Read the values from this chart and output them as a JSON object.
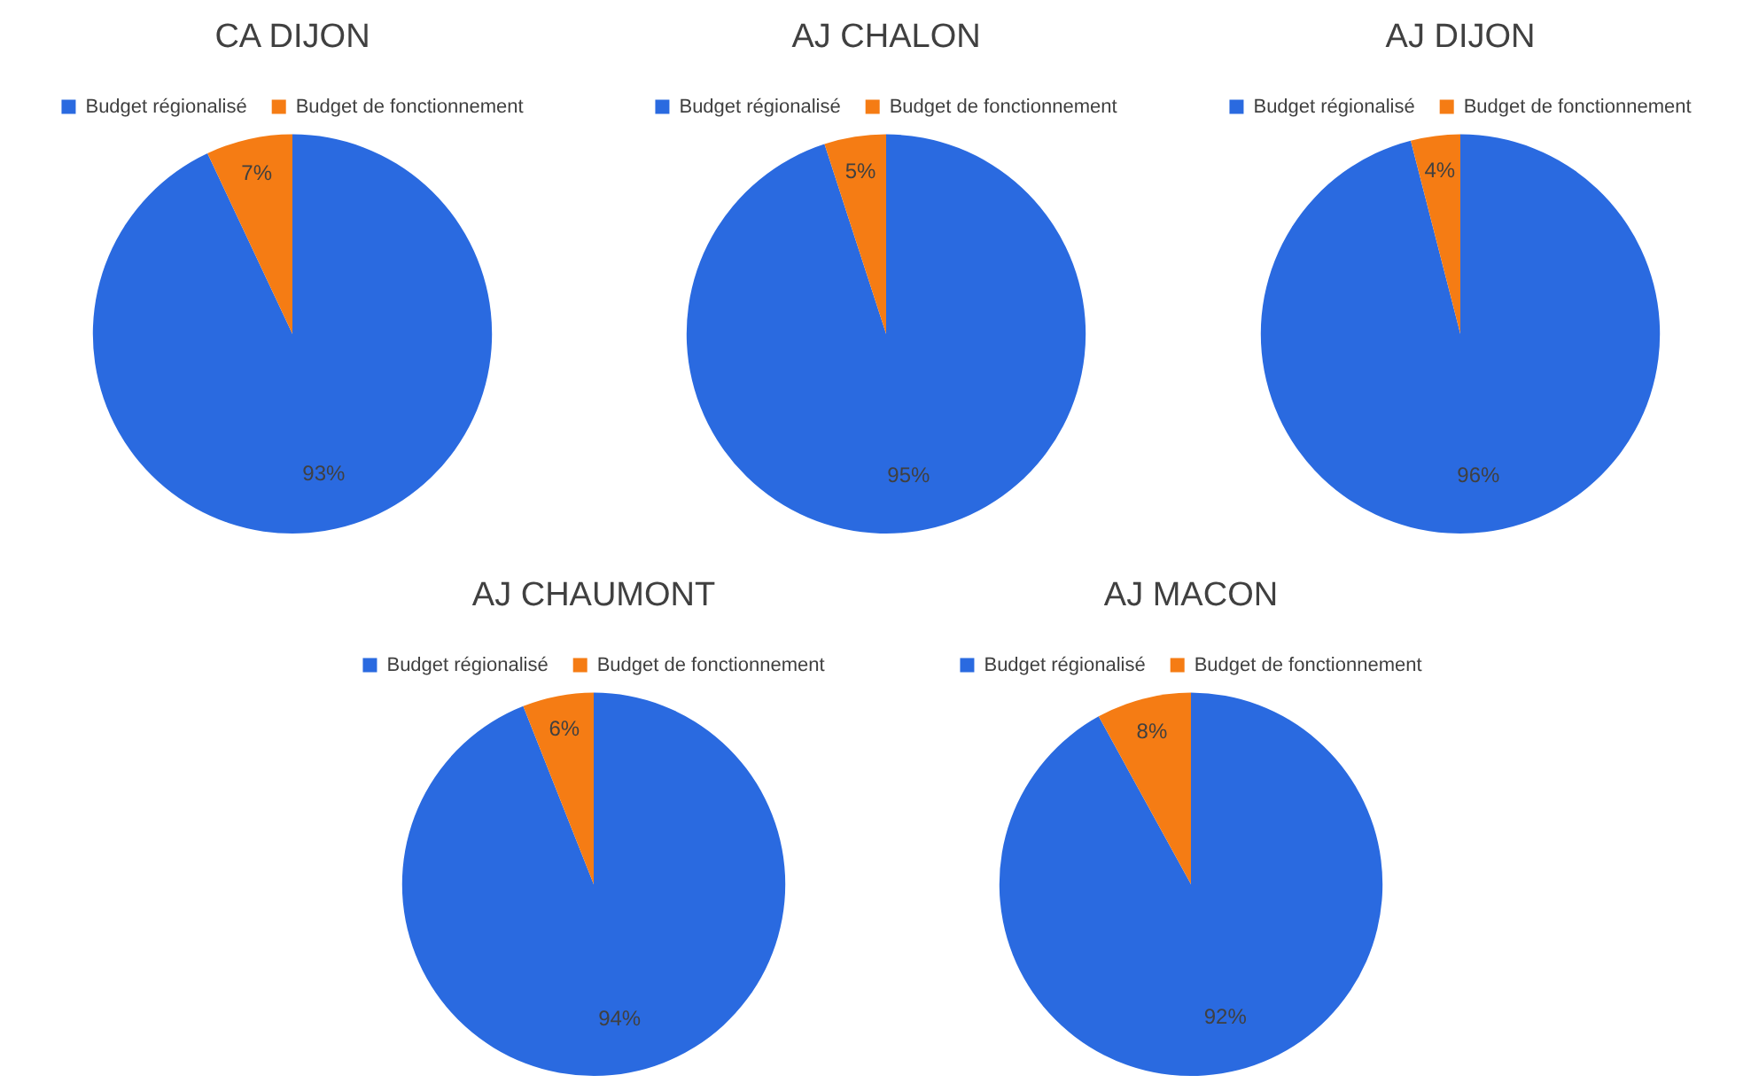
{
  "chart_data": [
    {
      "type": "pie",
      "title": "CA DIJON",
      "categories": [
        "Budget régionalisé",
        "Budget de fonctionnement"
      ],
      "values": [
        93,
        7
      ],
      "value_labels": [
        "93%",
        "7%"
      ],
      "colors": [
        "#2a6ae0",
        "#f57c14"
      ],
      "legend": "top"
    },
    {
      "type": "pie",
      "title": "AJ CHALON",
      "categories": [
        "Budget régionalisé",
        "Budget de fonctionnement"
      ],
      "values": [
        95,
        5
      ],
      "value_labels": [
        "95%",
        "5%"
      ],
      "colors": [
        "#2a6ae0",
        "#f57c14"
      ],
      "legend": "top"
    },
    {
      "type": "pie",
      "title": "AJ DIJON",
      "categories": [
        "Budget régionalisé",
        "Budget de fonctionnement"
      ],
      "values": [
        96,
        4
      ],
      "value_labels": [
        "96%",
        "4%"
      ],
      "colors": [
        "#2a6ae0",
        "#f57c14"
      ],
      "legend": "top"
    },
    {
      "type": "pie",
      "title": "AJ CHAUMONT",
      "categories": [
        "Budget régionalisé",
        "Budget de fonctionnement"
      ],
      "values": [
        94,
        6
      ],
      "value_labels": [
        "94%",
        "6%"
      ],
      "colors": [
        "#2a6ae0",
        "#f57c14"
      ],
      "legend": "top"
    },
    {
      "type": "pie",
      "title": "AJ MACON",
      "categories": [
        "Budget régionalisé",
        "Budget de fonctionnement"
      ],
      "values": [
        92,
        8
      ],
      "value_labels": [
        "92%",
        "8%"
      ],
      "colors": [
        "#2a6ae0",
        "#f57c14"
      ],
      "legend": "top"
    }
  ]
}
